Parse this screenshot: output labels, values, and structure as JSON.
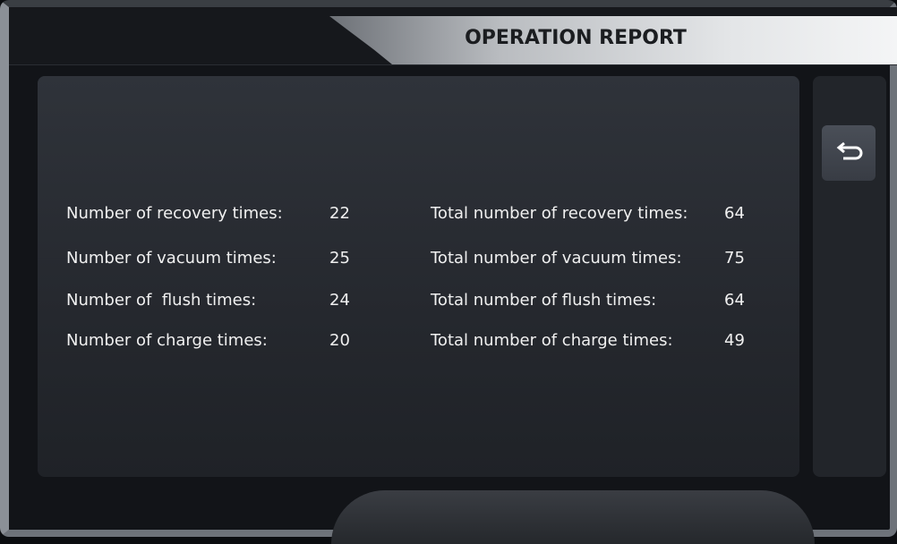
{
  "header": {
    "title": "OPERATION REPORT"
  },
  "report": {
    "left": [
      {
        "label": "Number of recovery times:",
        "value": 22
      },
      {
        "label": "Number of vacuum times:",
        "value": 25
      },
      {
        "label": "Number of  flush times:",
        "value": 24
      },
      {
        "label": "Number of charge times:",
        "value": 20
      }
    ],
    "right": [
      {
        "label": "Total number of recovery times:",
        "value": 64
      },
      {
        "label": "Total number of vacuum times:",
        "value": 75
      },
      {
        "label": "Total number of flush times:",
        "value": 64
      },
      {
        "label": "Total number of charge times:",
        "value": 49
      }
    ]
  }
}
